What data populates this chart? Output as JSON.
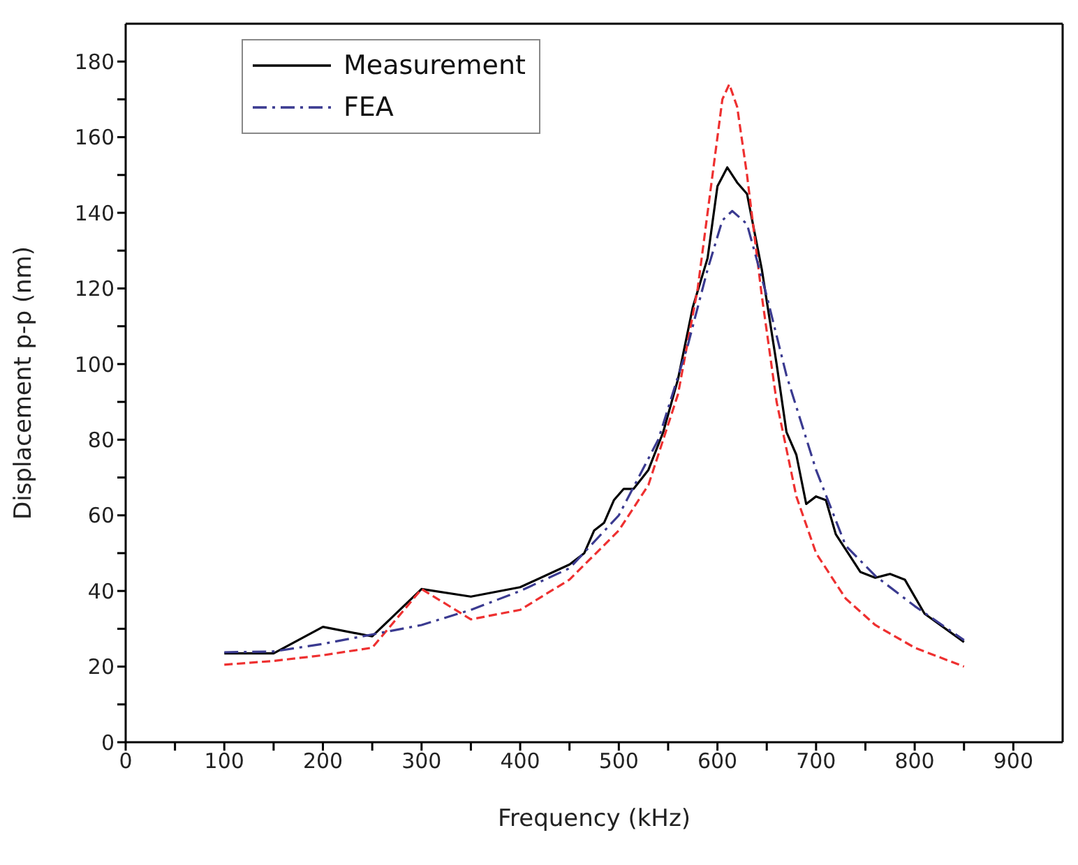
{
  "chart_data": {
    "type": "line",
    "xlabel": "Frequency (kHz)",
    "ylabel": "Displacement p-p (nm)",
    "xlim": [
      0,
      950
    ],
    "ylim": [
      0,
      190
    ],
    "xticks": [
      0,
      {
        "value": 50,
        "label": null
      },
      100,
      {
        "value": 150,
        "label": null
      },
      200,
      {
        "value": 250,
        "label": null
      },
      300,
      {
        "value": 350,
        "label": null
      },
      400,
      {
        "value": 450,
        "label": null
      },
      500,
      {
        "value": 550,
        "label": null
      },
      600,
      {
        "value": 650,
        "label": null
      },
      700,
      {
        "value": 750,
        "label": null
      },
      800,
      {
        "value": 850,
        "label": null
      },
      900
    ],
    "yticks": [
      0,
      {
        "value": 10,
        "label": null
      },
      20,
      {
        "value": 30,
        "label": null
      },
      40,
      {
        "value": 50,
        "label": null
      },
      60,
      {
        "value": 70,
        "label": null
      },
      80,
      {
        "value": 90,
        "label": null
      },
      100,
      {
        "value": 110,
        "label": null
      },
      120,
      {
        "value": 130,
        "label": null
      },
      140,
      {
        "value": 150,
        "label": null
      },
      160,
      {
        "value": 170,
        "label": null
      },
      180
    ],
    "legend": "top left",
    "marker": "none",
    "series": [
      {
        "name": "Measurement",
        "color": "#000000",
        "line_style": "solid",
        "x": [
          100,
          150,
          200,
          250,
          300,
          350,
          400,
          450,
          465,
          475,
          485,
          495,
          505,
          515,
          530,
          545,
          560,
          575,
          590,
          600,
          610,
          620,
          630,
          645,
          660,
          670,
          680,
          690,
          700,
          710,
          720,
          735,
          745,
          760,
          775,
          790,
          810,
          850
        ],
        "values": [
          23.5,
          23.5,
          30.5,
          28,
          40.5,
          38.5,
          41,
          47,
          50,
          56,
          58,
          64,
          67,
          67,
          72,
          82,
          96,
          115,
          128,
          147,
          152,
          148,
          145,
          125,
          100,
          82,
          76,
          63,
          65,
          64,
          55,
          49,
          45,
          43.5,
          44.5,
          43,
          34,
          26.5
        ]
      },
      {
        "color": "#ee3030",
        "line_style": "dashed",
        "x": [
          100,
          150,
          200,
          250,
          300,
          350,
          400,
          450,
          500,
          530,
          560,
          580,
          595,
          605,
          612,
          620,
          630,
          645,
          660,
          680,
          700,
          730,
          760,
          800,
          850
        ],
        "values": [
          20.5,
          21.5,
          23,
          25,
          40.5,
          32.5,
          35,
          43,
          56,
          68,
          92,
          120,
          150,
          170,
          174,
          168,
          150,
          118,
          90,
          65,
          50,
          38,
          31,
          25,
          20
        ]
      },
      {
        "name": "FEA",
        "color": "#3a3a90",
        "line_style": "dashdot",
        "x": [
          100,
          150,
          200,
          250,
          300,
          350,
          400,
          450,
          500,
          540,
          570,
          590,
          605,
          615,
          630,
          650,
          670,
          700,
          730,
          760,
          800,
          850
        ],
        "values": [
          23.8,
          24,
          26,
          28.5,
          31,
          35,
          40,
          46,
          60,
          80,
          105,
          125,
          138,
          140.5,
          137,
          118,
          97,
          72,
          52,
          44,
          36,
          27
        ]
      }
    ]
  }
}
